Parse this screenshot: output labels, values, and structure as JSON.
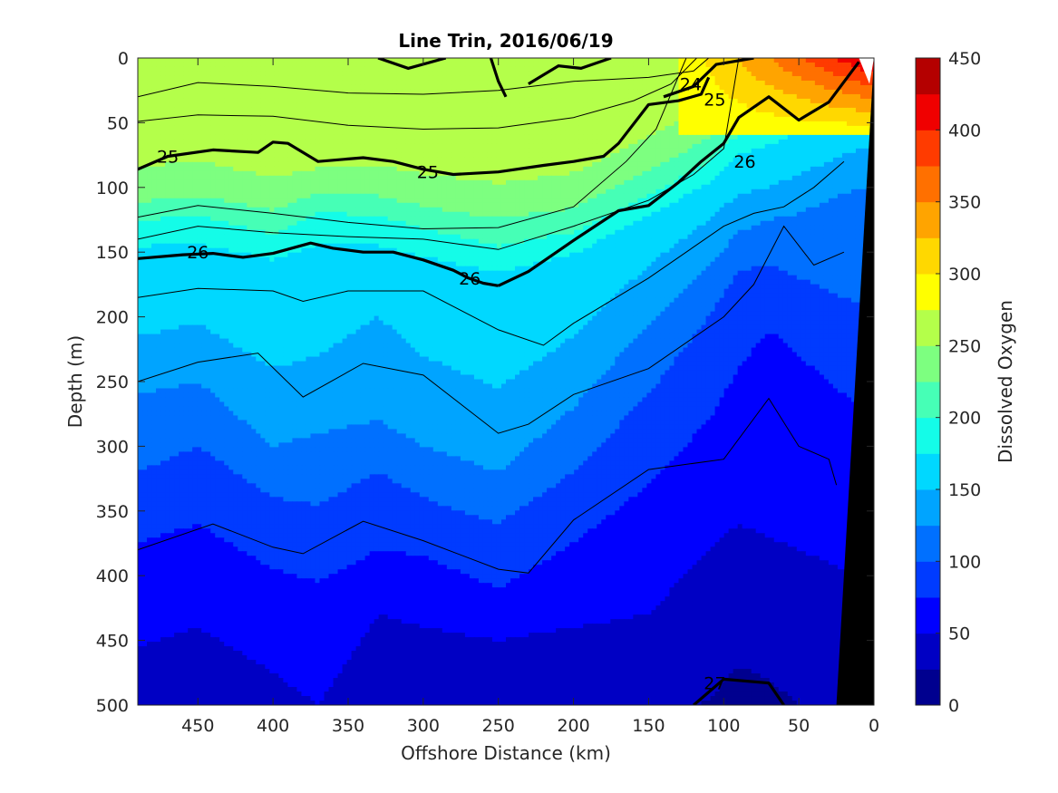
{
  "chart_data": {
    "type": "heatmap",
    "title": "Line Trin, 2016/06/19",
    "xlabel": "Offshore Distance (km)",
    "ylabel": "Depth (m)",
    "xlim": [
      490,
      0
    ],
    "ylim": [
      0,
      500
    ],
    "x_reversed": true,
    "y_reversed": true,
    "x_ticks": [
      450,
      400,
      350,
      300,
      250,
      200,
      150,
      100,
      50,
      0
    ],
    "y_ticks": [
      0,
      50,
      100,
      150,
      200,
      250,
      300,
      350,
      400,
      450,
      500
    ],
    "colorbar": {
      "label": "Dissolved Oxygen",
      "range": [
        0,
        450
      ],
      "ticks": [
        0,
        50,
        100,
        150,
        200,
        250,
        300,
        350,
        400,
        450
      ],
      "levels": [
        0,
        25,
        50,
        75,
        100,
        125,
        150,
        175,
        200,
        225,
        250,
        275,
        300,
        325,
        350,
        375,
        400,
        425,
        450
      ],
      "colors": [
        "#00008f",
        "#0000c4",
        "#0000ff",
        "#003bff",
        "#0070ff",
        "#00a4ff",
        "#00d8ff",
        "#14fce8",
        "#46ffb6",
        "#7dff80",
        "#b4ff4a",
        "#ffff00",
        "#ffd800",
        "#ffa400",
        "#ff7000",
        "#ff3b00",
        "#f00000",
        "#b40000"
      ]
    },
    "fill_bands": [
      {
        "min": 250,
        "max": 275,
        "top": 0,
        "bottom": 0,
        "offshore": {
          "x": [
            490,
            0
          ],
          "bottom": [
            60,
            40
          ]
        }
      },
      {
        "min": 25,
        "max": 50,
        "boundary": {
          "x": [
            490,
            450,
            400,
            350,
            300,
            250,
            200,
            150,
            100,
            50,
            20
          ],
          "depth": [
            460,
            450,
            470,
            440,
            420,
            430,
            440,
            430,
            390,
            380,
            380
          ]
        }
      }
    ],
    "density_contours": [
      {
        "value": 24,
        "label": "24"
      },
      {
        "value": 25,
        "label": "25"
      },
      {
        "value": 26,
        "label": "26"
      },
      {
        "value": 27,
        "label": "27"
      }
    ],
    "contour_labels": [
      {
        "text": "24",
        "x": 122,
        "y": 20
      },
      {
        "text": "25",
        "x": 106,
        "y": 32
      },
      {
        "text": "25",
        "x": 470,
        "y": 76
      },
      {
        "text": "25",
        "x": 297,
        "y": 88
      },
      {
        "text": "26",
        "x": 86,
        "y": 80
      },
      {
        "text": "26",
        "x": 450,
        "y": 150
      },
      {
        "text": "26",
        "x": 269,
        "y": 170
      },
      {
        "text": "27",
        "x": 106,
        "y": 483
      }
    ],
    "contour_lines": {
      "bold_25": {
        "x": [
          490,
          470,
          440,
          410,
          400,
          390,
          370,
          350,
          340,
          320,
          300,
          280,
          250,
          220,
          200,
          180,
          170,
          150,
          130,
          115,
          110
        ],
        "depth": [
          86,
          76,
          71,
          73,
          65,
          66,
          80,
          78,
          77,
          80,
          86,
          90,
          88,
          83,
          80,
          76,
          66,
          36,
          33,
          28,
          15
        ]
      },
      "bold_26a": {
        "x": [
          490,
          460,
          440,
          420,
          400,
          375,
          360,
          340,
          320,
          300,
          280,
          270,
          260,
          250
        ],
        "depth": [
          155,
          152,
          151,
          154,
          151,
          143,
          147,
          150,
          150,
          156,
          164,
          170,
          174,
          176
        ]
      },
      "bold_26b": {
        "x": [
          250,
          230,
          200,
          170,
          150,
          130,
          115,
          100,
          90,
          70,
          50,
          30,
          10
        ],
        "depth": [
          176,
          165,
          141,
          118,
          114,
          96,
          80,
          66,
          46,
          30,
          48,
          34,
          3
        ]
      },
      "bold_27": {
        "x": [
          120,
          100,
          70,
          60
        ],
        "depth": [
          500,
          480,
          483,
          500
        ]
      }
    },
    "thin_contours": [
      {
        "x": [
          490,
          450,
          400,
          350,
          300,
          250,
          200,
          150,
          120,
          110
        ],
        "depth": [
          30,
          19,
          22,
          27,
          28,
          25,
          18,
          15,
          10,
          0
        ]
      },
      {
        "x": [
          490,
          450,
          400,
          350,
          300,
          250,
          200,
          160,
          135,
          118
        ],
        "depth": [
          49,
          44,
          45,
          52,
          55,
          54,
          46,
          33,
          20,
          0
        ]
      },
      {
        "x": [
          490,
          450,
          400,
          350,
          300,
          250,
          200,
          165,
          145,
          125
        ],
        "depth": [
          123,
          114,
          120,
          127,
          132,
          131,
          115,
          80,
          55,
          0
        ]
      },
      {
        "x": [
          490,
          450,
          400,
          350,
          300,
          250,
          200,
          150,
          120,
          100,
          90
        ],
        "depth": [
          140,
          130,
          135,
          138,
          140,
          148,
          130,
          110,
          90,
          70,
          0
        ]
      },
      {
        "x": [
          490,
          450,
          400,
          380,
          350,
          300,
          250,
          220,
          200,
          150,
          100,
          80,
          60,
          40,
          20
        ],
        "depth": [
          185,
          178,
          180,
          188,
          180,
          180,
          210,
          222,
          205,
          170,
          130,
          120,
          115,
          100,
          80
        ]
      },
      {
        "x": [
          490,
          450,
          410,
          380,
          340,
          300,
          250,
          230,
          200,
          150,
          100,
          80,
          60,
          40,
          20
        ],
        "depth": [
          250,
          235,
          228,
          262,
          236,
          245,
          290,
          283,
          260,
          240,
          200,
          175,
          130,
          160,
          150
        ]
      },
      {
        "x": [
          490,
          440,
          400,
          380,
          340,
          300,
          250,
          230,
          200,
          150,
          100,
          70,
          50,
          30,
          25
        ],
        "depth": [
          380,
          360,
          378,
          383,
          358,
          373,
          395,
          398,
          357,
          318,
          310,
          263,
          300,
          310,
          330
        ]
      }
    ],
    "coast_mask": {
      "x_top": 0,
      "x_bottom": 25,
      "depth_top": 0,
      "depth_bottom": 500
    }
  }
}
